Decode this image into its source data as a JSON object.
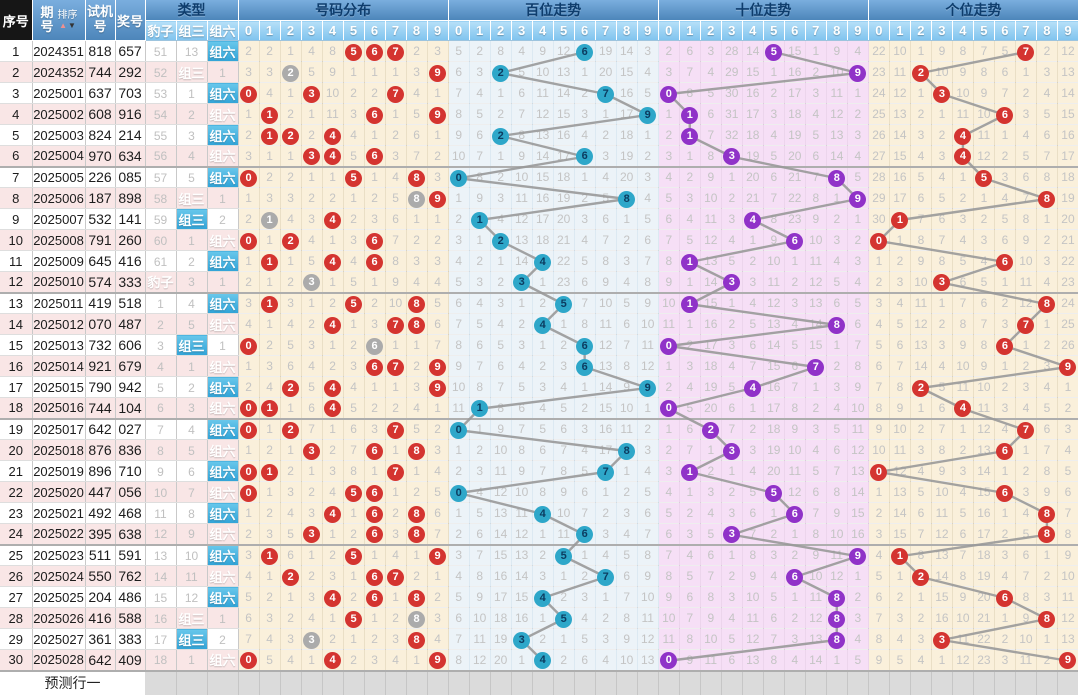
{
  "header": {
    "seq": "序号",
    "period": "期号",
    "sort_label": "排序",
    "sort_up_icon": "▲",
    "sort_down_icon": "▼",
    "test": "试机号",
    "prize": "奖号",
    "type": "类型",
    "type_columns": [
      "豹子",
      "组三",
      "组六"
    ],
    "sections": [
      "号码分布",
      "百位走势",
      "十位走势",
      "个位走势"
    ],
    "digit_headers": [
      "0",
      "1",
      "2",
      "3",
      "4",
      "5",
      "6",
      "7",
      "8",
      "9"
    ]
  },
  "footer": {
    "label": "预测行一"
  },
  "colors": {
    "circle_red": "#d43430",
    "circle_cyan": "#2ea7c9",
    "circle_purple": "#9032c8",
    "circle_gray": "#ababab",
    "trend_line": "#999999",
    "dist_bg": "#faf0db",
    "hundreds_bg": "#ecf3f8",
    "tens_bg": "#f6dff6",
    "row_pink": "#f9e6e6",
    "type_label_top": "#68c7eb",
    "type_label_bottom": "#31a3d7",
    "header_top": "#7aaede",
    "header_bottom": "#4d86ba",
    "subheader_top": "#b7e0f8",
    "subheader_bottom": "#7fc3ee",
    "seq_header_bg": "#161616",
    "header_text": "#0e3d6d",
    "miss_text": "#c4c4c4",
    "footer_bg": "#dbdbdb",
    "sort_up": "#ef9090",
    "sort_down": "#333333"
  },
  "seeds": {
    "baozi": 51,
    "zusan": 13,
    "dist": [
      2,
      2,
      1,
      4,
      8,
      null,
      null,
      null,
      2,
      3
    ],
    "hundreds": [
      5,
      2,
      8,
      4,
      9,
      12,
      null,
      19,
      14,
      3
    ],
    "tens": [
      2,
      6,
      3,
      28,
      14,
      null,
      15,
      1,
      9,
      4
    ],
    "units": [
      22,
      10,
      1,
      9,
      8,
      7,
      5,
      null,
      2,
      12
    ]
  },
  "rows": [
    {
      "seq": "1",
      "period": "2024351",
      "test": "818",
      "prize": "657"
    },
    {
      "seq": "2",
      "period": "2024352",
      "test": "744",
      "prize": "292"
    },
    {
      "seq": "3",
      "period": "2025001",
      "test": "637",
      "prize": "703"
    },
    {
      "seq": "4",
      "period": "2025002",
      "test": "608",
      "prize": "916"
    },
    {
      "seq": "5",
      "period": "2025003",
      "test": "824",
      "prize": "214"
    },
    {
      "seq": "6",
      "period": "2025004",
      "test": "970",
      "prize": "634"
    },
    {
      "seq": "7",
      "period": "2025005",
      "test": "226",
      "prize": "085"
    },
    {
      "seq": "8",
      "period": "2025006",
      "test": "187",
      "prize": "898"
    },
    {
      "seq": "9",
      "period": "2025007",
      "test": "532",
      "prize": "141"
    },
    {
      "seq": "10",
      "period": "2025008",
      "test": "791",
      "prize": "260"
    },
    {
      "seq": "11",
      "period": "2025009",
      "test": "645",
      "prize": "416"
    },
    {
      "seq": "12",
      "period": "2025010",
      "test": "574",
      "prize": "333"
    },
    {
      "seq": "13",
      "period": "2025011",
      "test": "419",
      "prize": "518"
    },
    {
      "seq": "14",
      "period": "2025012",
      "test": "070",
      "prize": "487"
    },
    {
      "seq": "15",
      "period": "2025013",
      "test": "732",
      "prize": "606"
    },
    {
      "seq": "16",
      "period": "2025014",
      "test": "921",
      "prize": "679"
    },
    {
      "seq": "17",
      "period": "2025015",
      "test": "790",
      "prize": "942"
    },
    {
      "seq": "18",
      "period": "2025016",
      "test": "744",
      "prize": "104"
    },
    {
      "seq": "19",
      "period": "2025017",
      "test": "642",
      "prize": "027"
    },
    {
      "seq": "20",
      "period": "2025018",
      "test": "876",
      "prize": "836"
    },
    {
      "seq": "21",
      "period": "2025019",
      "test": "896",
      "prize": "710"
    },
    {
      "seq": "22",
      "period": "2025020",
      "test": "447",
      "prize": "056"
    },
    {
      "seq": "23",
      "period": "2025021",
      "test": "492",
      "prize": "468"
    },
    {
      "seq": "24",
      "period": "2025022",
      "test": "395",
      "prize": "638"
    },
    {
      "seq": "25",
      "period": "2025023",
      "test": "511",
      "prize": "591"
    },
    {
      "seq": "26",
      "period": "2025024",
      "test": "550",
      "prize": "762"
    },
    {
      "seq": "27",
      "period": "2025025",
      "test": "204",
      "prize": "486"
    },
    {
      "seq": "28",
      "period": "2025026",
      "test": "416",
      "prize": "588"
    },
    {
      "seq": "29",
      "period": "2025027",
      "test": "361",
      "prize": "383"
    },
    {
      "seq": "30",
      "period": "2025028",
      "test": "642",
      "prize": "409"
    }
  ]
}
